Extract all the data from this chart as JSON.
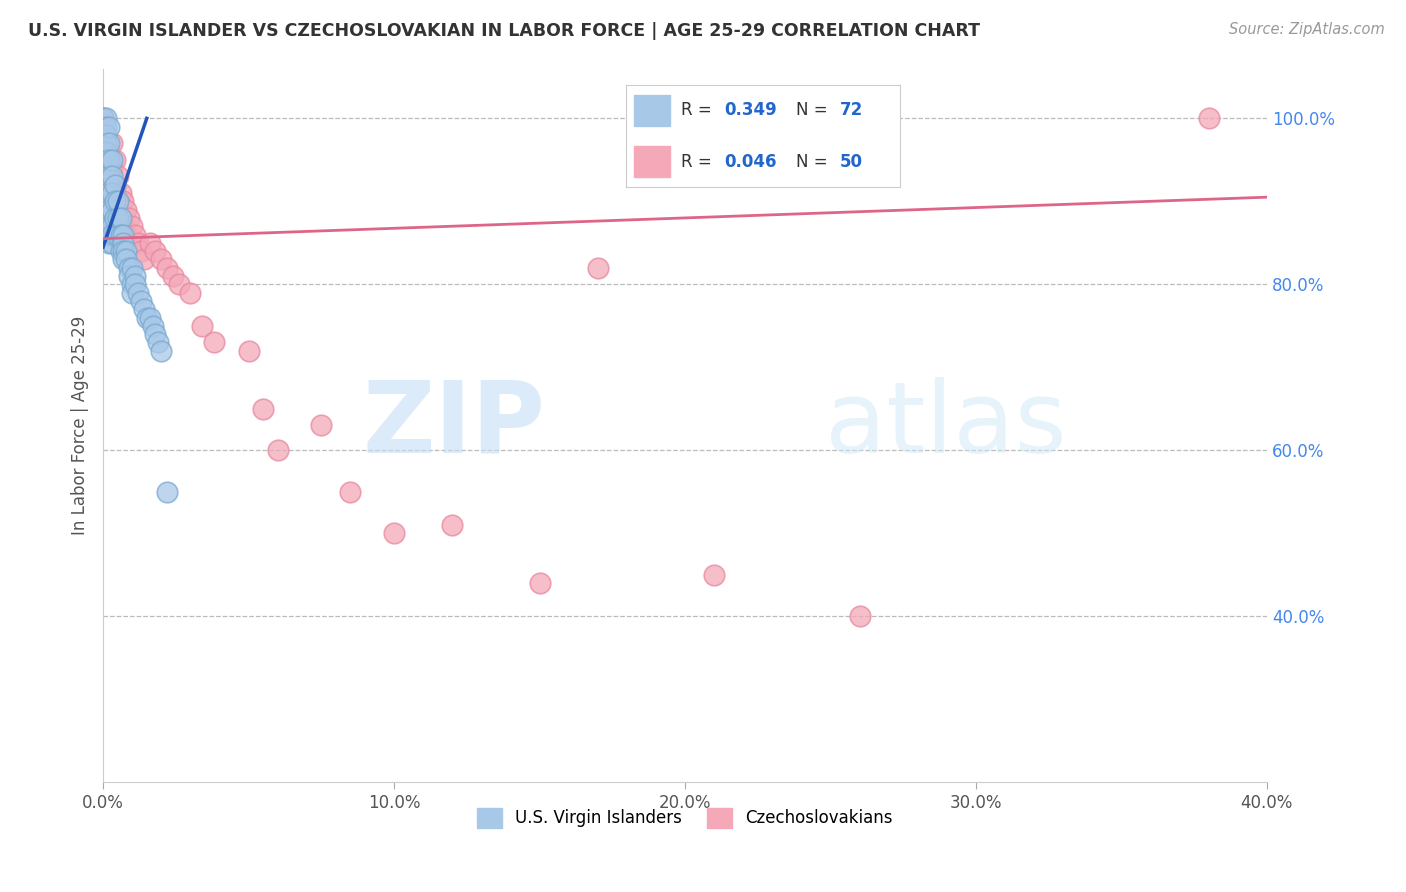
{
  "title": "U.S. VIRGIN ISLANDER VS CZECHOSLOVAKIAN IN LABOR FORCE | AGE 25-29 CORRELATION CHART",
  "source": "Source: ZipAtlas.com",
  "ylabel": "In Labor Force | Age 25-29",
  "xlim": [
    0.0,
    0.4
  ],
  "ylim": [
    0.2,
    1.06
  ],
  "xticks": [
    0.0,
    0.1,
    0.2,
    0.3,
    0.4
  ],
  "xticklabels": [
    "0.0%",
    "10.0%",
    "20.0%",
    "30.0%",
    "40.0%"
  ],
  "yticks_right": [
    1.0,
    0.8,
    0.6,
    0.4
  ],
  "yticklabels_right": [
    "100.0%",
    "80.0%",
    "60.0%",
    "40.0%"
  ],
  "blue_color": "#a8c8e8",
  "pink_color": "#f4a8b8",
  "blue_edge_color": "#7aaad0",
  "pink_edge_color": "#e888a0",
  "blue_line_color": "#2255bb",
  "pink_line_color": "#dd6688",
  "legend_text_color": "#2266cc",
  "background_color": "#ffffff",
  "grid_color": "#bbbbbb",
  "watermark_zip": "ZIP",
  "watermark_atlas": "atlas",
  "blue_x": [
    0.0,
    0.0,
    0.0,
    0.0,
    0.0,
    0.0,
    0.0,
    0.0,
    0.001,
    0.001,
    0.001,
    0.001,
    0.001,
    0.001,
    0.001,
    0.001,
    0.001,
    0.001,
    0.001,
    0.001,
    0.001,
    0.001,
    0.001,
    0.002,
    0.002,
    0.002,
    0.002,
    0.002,
    0.002,
    0.002,
    0.002,
    0.002,
    0.003,
    0.003,
    0.003,
    0.003,
    0.003,
    0.003,
    0.003,
    0.004,
    0.004,
    0.004,
    0.004,
    0.005,
    0.005,
    0.005,
    0.006,
    0.006,
    0.006,
    0.007,
    0.007,
    0.007,
    0.007,
    0.008,
    0.008,
    0.009,
    0.009,
    0.01,
    0.01,
    0.01,
    0.011,
    0.011,
    0.012,
    0.013,
    0.014,
    0.015,
    0.016,
    0.017,
    0.018,
    0.019,
    0.02,
    0.022
  ],
  "blue_y": [
    1.0,
    0.98,
    0.97,
    0.96,
    0.95,
    0.94,
    0.93,
    0.92,
    1.0,
    0.99,
    0.98,
    0.97,
    0.96,
    0.95,
    0.94,
    0.93,
    0.92,
    0.91,
    0.9,
    0.89,
    0.88,
    0.87,
    0.86,
    0.99,
    0.97,
    0.95,
    0.93,
    0.91,
    0.89,
    0.87,
    0.86,
    0.85,
    0.95,
    0.93,
    0.91,
    0.89,
    0.87,
    0.86,
    0.85,
    0.92,
    0.9,
    0.88,
    0.86,
    0.9,
    0.88,
    0.86,
    0.88,
    0.86,
    0.84,
    0.86,
    0.85,
    0.84,
    0.83,
    0.84,
    0.83,
    0.82,
    0.81,
    0.82,
    0.8,
    0.79,
    0.81,
    0.8,
    0.79,
    0.78,
    0.77,
    0.76,
    0.76,
    0.75,
    0.74,
    0.73,
    0.72,
    0.55
  ],
  "pink_x": [
    0.0,
    0.0,
    0.0,
    0.001,
    0.001,
    0.001,
    0.002,
    0.002,
    0.003,
    0.003,
    0.003,
    0.003,
    0.004,
    0.004,
    0.004,
    0.005,
    0.005,
    0.006,
    0.006,
    0.007,
    0.007,
    0.008,
    0.008,
    0.009,
    0.01,
    0.011,
    0.012,
    0.013,
    0.014,
    0.016,
    0.018,
    0.02,
    0.022,
    0.024,
    0.026,
    0.03,
    0.034,
    0.038,
    0.05,
    0.055,
    0.06,
    0.075,
    0.085,
    0.1,
    0.12,
    0.15,
    0.17,
    0.21,
    0.26,
    0.38
  ],
  "pink_y": [
    1.0,
    0.98,
    0.96,
    0.98,
    0.95,
    0.92,
    0.96,
    0.93,
    0.97,
    0.94,
    0.91,
    0.88,
    0.95,
    0.92,
    0.89,
    0.93,
    0.9,
    0.91,
    0.88,
    0.9,
    0.87,
    0.89,
    0.86,
    0.88,
    0.87,
    0.86,
    0.85,
    0.84,
    0.83,
    0.85,
    0.84,
    0.83,
    0.82,
    0.81,
    0.8,
    0.79,
    0.75,
    0.73,
    0.72,
    0.65,
    0.6,
    0.63,
    0.55,
    0.5,
    0.51,
    0.44,
    0.82,
    0.45,
    0.4,
    1.0
  ],
  "blue_trend_x": [
    0.0,
    0.015
  ],
  "blue_trend_y": [
    0.845,
    1.0
  ],
  "pink_trend_x": [
    0.0,
    0.4
  ],
  "pink_trend_y": [
    0.855,
    0.905
  ]
}
